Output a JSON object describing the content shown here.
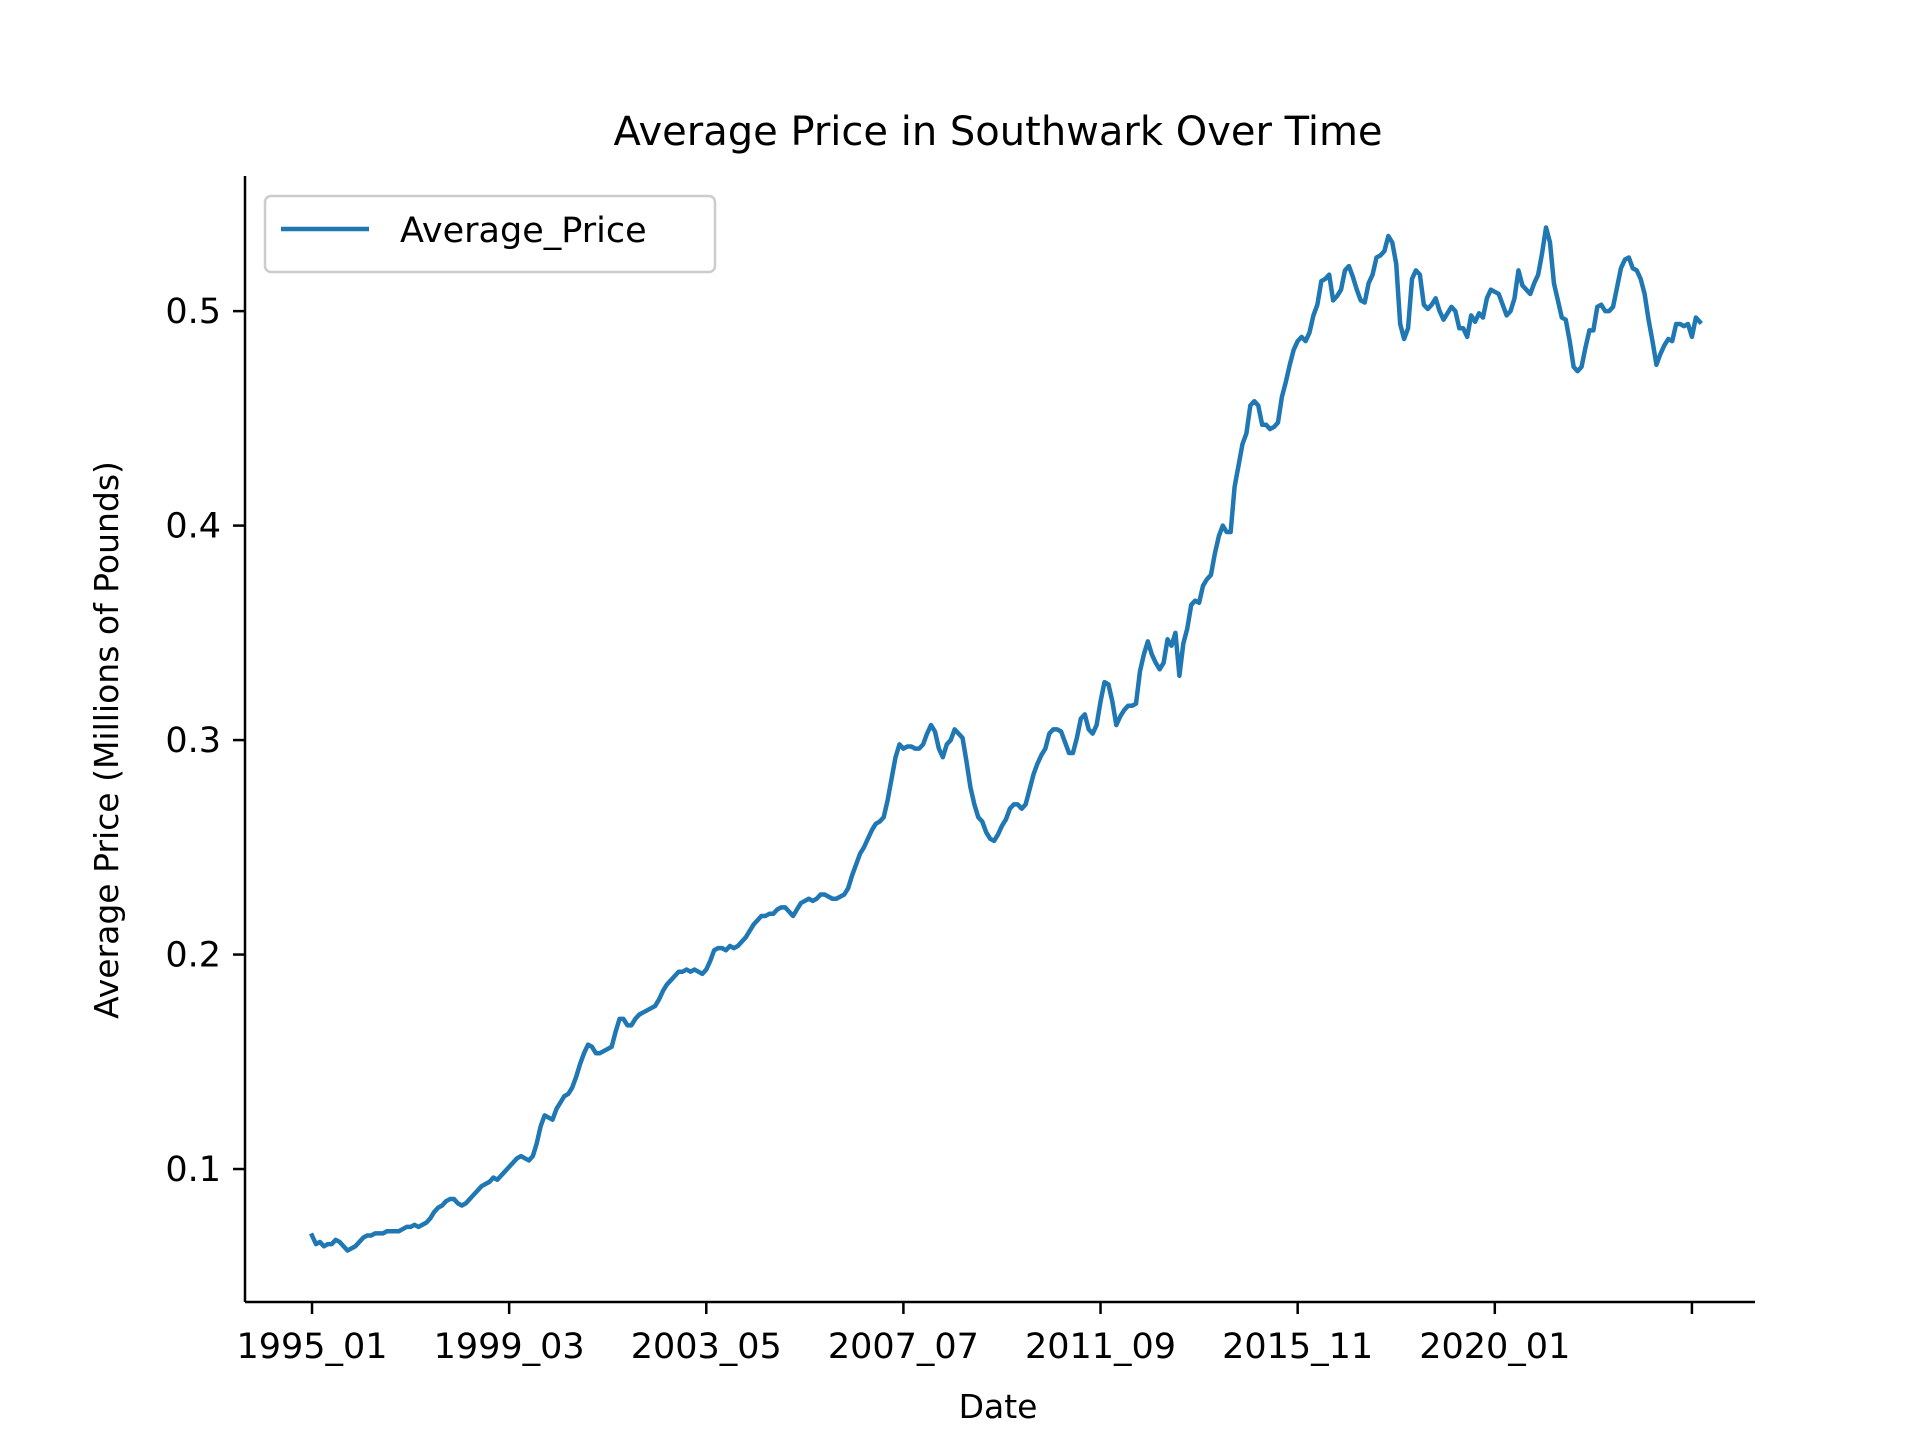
{
  "chart_data": {
    "type": "line",
    "title": "Average Price in Southwark Over Time",
    "xlabel": "Date",
    "ylabel": "Average Price (Millions of Pounds)",
    "legend": {
      "placement": "upper-left"
    },
    "grid": false,
    "x_tick_labels": [
      "1995_01",
      "1999_03",
      "2003_05",
      "2007_07",
      "2011_09",
      "2015_11",
      "2020_01",
      ""
    ],
    "x_tick_months": [
      0,
      50,
      100,
      150,
      200,
      250,
      300,
      350
    ],
    "y_ticks": [
      0.1,
      0.2,
      0.3,
      0.4,
      0.5
    ],
    "y_tick_labels": [
      "0.1",
      "0.2",
      "0.3",
      "0.4",
      "0.5"
    ],
    "ylim": [
      0.038,
      0.563
    ],
    "x_range_months": [
      -17,
      366
    ],
    "series": [
      {
        "name": "Average_Price",
        "color": "#1f77b4",
        "x_start": "1995-01",
        "x_step": "1 month",
        "values": [
          0.069,
          0.065,
          0.066,
          0.064,
          0.065,
          0.065,
          0.067,
          0.066,
          0.064,
          0.062,
          0.063,
          0.064,
          0.066,
          0.068,
          0.069,
          0.069,
          0.07,
          0.07,
          0.07,
          0.071,
          0.071,
          0.071,
          0.071,
          0.072,
          0.073,
          0.073,
          0.074,
          0.073,
          0.074,
          0.075,
          0.077,
          0.08,
          0.082,
          0.083,
          0.085,
          0.086,
          0.086,
          0.084,
          0.083,
          0.084,
          0.086,
          0.088,
          0.09,
          0.092,
          0.093,
          0.094,
          0.096,
          0.095,
          0.097,
          0.099,
          0.101,
          0.103,
          0.105,
          0.106,
          0.105,
          0.104,
          0.106,
          0.112,
          0.12,
          0.125,
          0.124,
          0.123,
          0.128,
          0.131,
          0.134,
          0.135,
          0.138,
          0.143,
          0.149,
          0.154,
          0.158,
          0.157,
          0.154,
          0.154,
          0.155,
          0.156,
          0.157,
          0.164,
          0.17,
          0.17,
          0.167,
          0.167,
          0.17,
          0.172,
          0.173,
          0.174,
          0.175,
          0.176,
          0.179,
          0.183,
          0.186,
          0.188,
          0.19,
          0.192,
          0.192,
          0.193,
          0.192,
          0.193,
          0.192,
          0.191,
          0.193,
          0.197,
          0.202,
          0.203,
          0.203,
          0.202,
          0.204,
          0.203,
          0.204,
          0.206,
          0.208,
          0.211,
          0.214,
          0.216,
          0.218,
          0.218,
          0.219,
          0.219,
          0.221,
          0.222,
          0.222,
          0.22,
          0.218,
          0.221,
          0.224,
          0.225,
          0.226,
          0.225,
          0.226,
          0.228,
          0.228,
          0.227,
          0.226,
          0.226,
          0.227,
          0.228,
          0.231,
          0.237,
          0.242,
          0.247,
          0.25,
          0.254,
          0.258,
          0.261,
          0.262,
          0.264,
          0.272,
          0.282,
          0.292,
          0.298,
          0.296,
          0.297,
          0.297,
          0.296,
          0.296,
          0.298,
          0.303,
          0.307,
          0.304,
          0.296,
          0.292,
          0.298,
          0.3,
          0.305,
          0.303,
          0.301,
          0.29,
          0.278,
          0.27,
          0.264,
          0.262,
          0.257,
          0.254,
          0.253,
          0.256,
          0.26,
          0.263,
          0.268,
          0.27,
          0.27,
          0.268,
          0.27,
          0.277,
          0.284,
          0.289,
          0.293,
          0.296,
          0.303,
          0.305,
          0.305,
          0.304,
          0.299,
          0.294,
          0.294,
          0.301,
          0.31,
          0.312,
          0.305,
          0.303,
          0.307,
          0.318,
          0.327,
          0.326,
          0.318,
          0.307,
          0.311,
          0.314,
          0.316,
          0.316,
          0.317,
          0.332,
          0.34,
          0.346,
          0.34,
          0.336,
          0.333,
          0.336,
          0.347,
          0.344,
          0.35,
          0.33,
          0.345,
          0.352,
          0.363,
          0.365,
          0.364,
          0.372,
          0.375,
          0.377,
          0.387,
          0.395,
          0.4,
          0.397,
          0.397,
          0.418,
          0.428,
          0.438,
          0.443,
          0.456,
          0.458,
          0.456,
          0.447,
          0.447,
          0.445,
          0.446,
          0.448,
          0.46,
          0.467,
          0.475,
          0.482,
          0.486,
          0.488,
          0.486,
          0.49,
          0.498,
          0.503,
          0.514,
          0.515,
          0.517,
          0.505,
          0.507,
          0.51,
          0.519,
          0.521,
          0.516,
          0.51,
          0.505,
          0.504,
          0.513,
          0.517,
          0.525,
          0.526,
          0.528,
          0.535,
          0.532,
          0.522,
          0.494,
          0.487,
          0.492,
          0.515,
          0.519,
          0.517,
          0.503,
          0.501,
          0.503,
          0.506,
          0.5,
          0.496,
          0.499,
          0.502,
          0.5,
          0.492,
          0.492,
          0.488,
          0.498,
          0.495,
          0.499,
          0.497,
          0.506,
          0.51,
          0.509,
          0.508,
          0.503,
          0.498,
          0.5,
          0.506,
          0.519,
          0.512,
          0.51,
          0.508,
          0.513,
          0.517,
          0.527,
          0.539,
          0.532,
          0.513,
          0.505,
          0.497,
          0.496,
          0.486,
          0.474,
          0.472,
          0.474,
          0.483,
          0.491,
          0.491,
          0.502,
          0.503,
          0.5,
          0.5,
          0.502,
          0.511,
          0.52,
          0.524,
          0.525,
          0.52,
          0.519,
          0.515,
          0.508,
          0.496,
          0.486,
          0.475,
          0.48,
          0.484,
          0.487,
          0.486,
          0.494,
          0.494,
          0.493,
          0.494,
          0.488,
          0.497,
          0.495
        ]
      }
    ]
  }
}
